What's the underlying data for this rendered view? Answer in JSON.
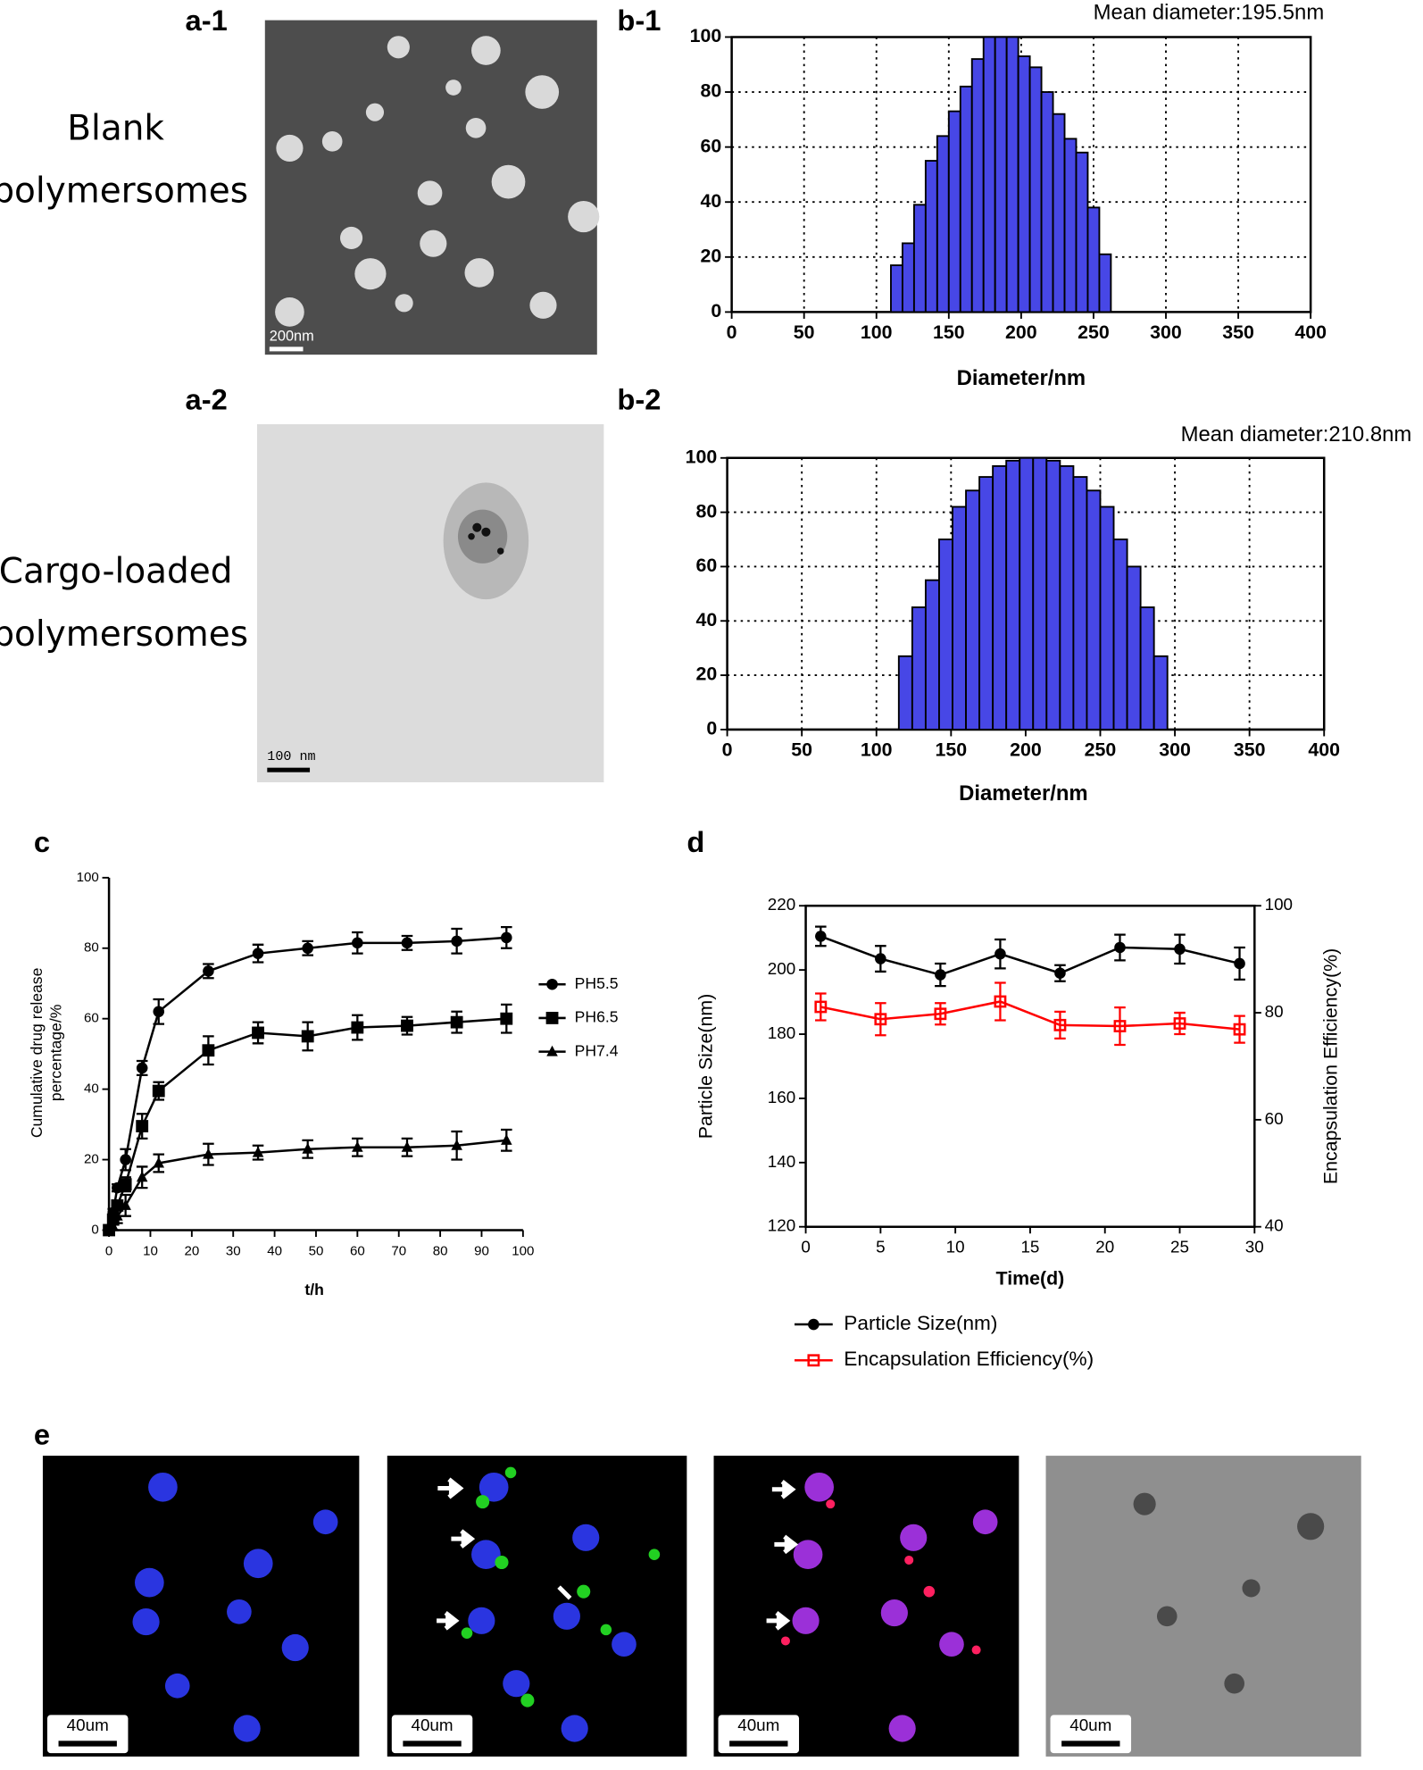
{
  "figure": {
    "panel_labels": [
      "a-1",
      "a-2",
      "e"
    ],
    "captions": [
      [
        "Blank",
        "polymersomes"
      ],
      [
        "Cargo-loaded",
        "polymersomes"
      ]
    ],
    "scale_bars": [
      "200nm",
      "100 nm",
      "40um",
      "40um",
      "40um",
      "40um"
    ]
  },
  "chart_data": [
    {
      "type": "histogram",
      "panel_label": "b-1",
      "title": "Mean diameter:195.5nm",
      "xlabel": "Diameter/nm",
      "bins": [
        110,
        118,
        126,
        134,
        142,
        150,
        158,
        166,
        174,
        182,
        190,
        198,
        206,
        214,
        222,
        230,
        238,
        246,
        254,
        262
      ],
      "values": [
        17,
        25,
        39,
        55,
        64,
        73,
        82,
        92,
        100,
        100,
        100,
        93,
        89,
        80,
        72,
        63,
        58,
        38,
        21
      ],
      "color": "#4747e6",
      "xlim": [
        0,
        400
      ],
      "xticks": [
        0,
        50,
        100,
        150,
        200,
        250,
        300,
        350,
        400
      ],
      "ylim": [
        0,
        100
      ],
      "yticks": [
        0,
        20,
        40,
        60,
        80,
        100
      ],
      "grid": true
    },
    {
      "type": "histogram",
      "panel_label": "b-2",
      "title": "Mean diameter:210.8nm",
      "xlabel": "Diameter/nm",
      "bins": [
        115,
        124,
        133,
        142,
        151,
        160,
        169,
        178,
        187,
        196,
        205,
        214,
        223,
        232,
        241,
        250,
        259,
        268,
        277,
        286,
        295
      ],
      "values": [
        27,
        45,
        55,
        70,
        82,
        88,
        93,
        97,
        99,
        100,
        100,
        99,
        97,
        93,
        88,
        82,
        70,
        60,
        45,
        27
      ],
      "color": "#4747e6",
      "xlim": [
        0,
        400
      ],
      "xticks": [
        0,
        50,
        100,
        150,
        200,
        250,
        300,
        350,
        400
      ],
      "ylim": [
        0,
        100
      ],
      "yticks": [
        0,
        20,
        40,
        60,
        80,
        100
      ],
      "grid": true
    },
    {
      "type": "line",
      "panel_label": "c",
      "xlabel": "t/h",
      "ylabel": [
        "Cumulative drug release",
        "percentage/%"
      ],
      "x": [
        0,
        1,
        2,
        4,
        8,
        12,
        24,
        36,
        48,
        60,
        72,
        84,
        96
      ],
      "series": [
        {
          "name": "PH5.5",
          "color": "#000000",
          "marker": "circle",
          "values": [
            0,
            5,
            12,
            20,
            46,
            62,
            73.5,
            78.5,
            80,
            81.5,
            81.5,
            82,
            83
          ],
          "errors": [
            0,
            1,
            1,
            3,
            2,
            3.5,
            2,
            2.5,
            2,
            3,
            2,
            3.5,
            3
          ]
        },
        {
          "name": "PH6.5",
          "color": "#000000",
          "marker": "square",
          "values": [
            0,
            3,
            7,
            13,
            29.5,
            39.5,
            51,
            56,
            55,
            57.5,
            58,
            59,
            60
          ],
          "errors": [
            0,
            1,
            1,
            2,
            3.5,
            2.5,
            4,
            3,
            4,
            3.5,
            2.5,
            3,
            4
          ]
        },
        {
          "name": "PH7.4",
          "color": "#000000",
          "marker": "triangle",
          "values": [
            0,
            1,
            4,
            7,
            15,
            19,
            21.5,
            22,
            23,
            23.5,
            23.5,
            24,
            25.5
          ],
          "errors": [
            0,
            1,
            2,
            3,
            3,
            2.5,
            3,
            2,
            2.5,
            2.5,
            2.5,
            4,
            3
          ]
        }
      ],
      "xlim": [
        0,
        100
      ],
      "xticks": [
        0,
        10,
        20,
        30,
        40,
        50,
        60,
        70,
        80,
        90,
        100
      ],
      "ylim": [
        0,
        100
      ],
      "yticks": [
        0,
        20,
        40,
        60,
        80,
        100
      ],
      "legend": "right"
    },
    {
      "type": "line",
      "panel_label": "d",
      "xlabel": "Time(d)",
      "ylabel": "Particle Size(nm)",
      "y2label": "Encapsulation Efficiency(%)",
      "x": [
        1,
        5,
        9,
        13,
        17,
        21,
        25,
        29
      ],
      "series": [
        {
          "name": "Particle Size(nm)",
          "color": "#000000",
          "marker": "circle",
          "values": [
            210.5,
            203.5,
            198.5,
            205,
            199,
            207,
            206.5,
            202
          ],
          "errors": [
            3,
            4,
            3.5,
            4.5,
            2.5,
            4,
            4.5,
            5
          ]
        },
        {
          "name": "Encapsulation Efficiency(%)",
          "color": "#ff0000",
          "marker": "square",
          "axis": "y2",
          "values": [
            81.1,
            78.8,
            79.8,
            82.1,
            77.7,
            77.5,
            78,
            76.9
          ],
          "errors": [
            2.5,
            3,
            2,
            3.5,
            2.5,
            3.5,
            2,
            2.5
          ]
        }
      ],
      "xlim": [
        0,
        30
      ],
      "xticks": [
        0,
        5,
        10,
        15,
        20,
        25,
        30
      ],
      "ylim": [
        120,
        220
      ],
      "yticks": [
        120,
        140,
        160,
        180,
        200,
        220
      ],
      "y2lim": [
        40,
        100
      ],
      "y2ticks": [
        40,
        60,
        80,
        100
      ],
      "legend": "bottom"
    }
  ]
}
